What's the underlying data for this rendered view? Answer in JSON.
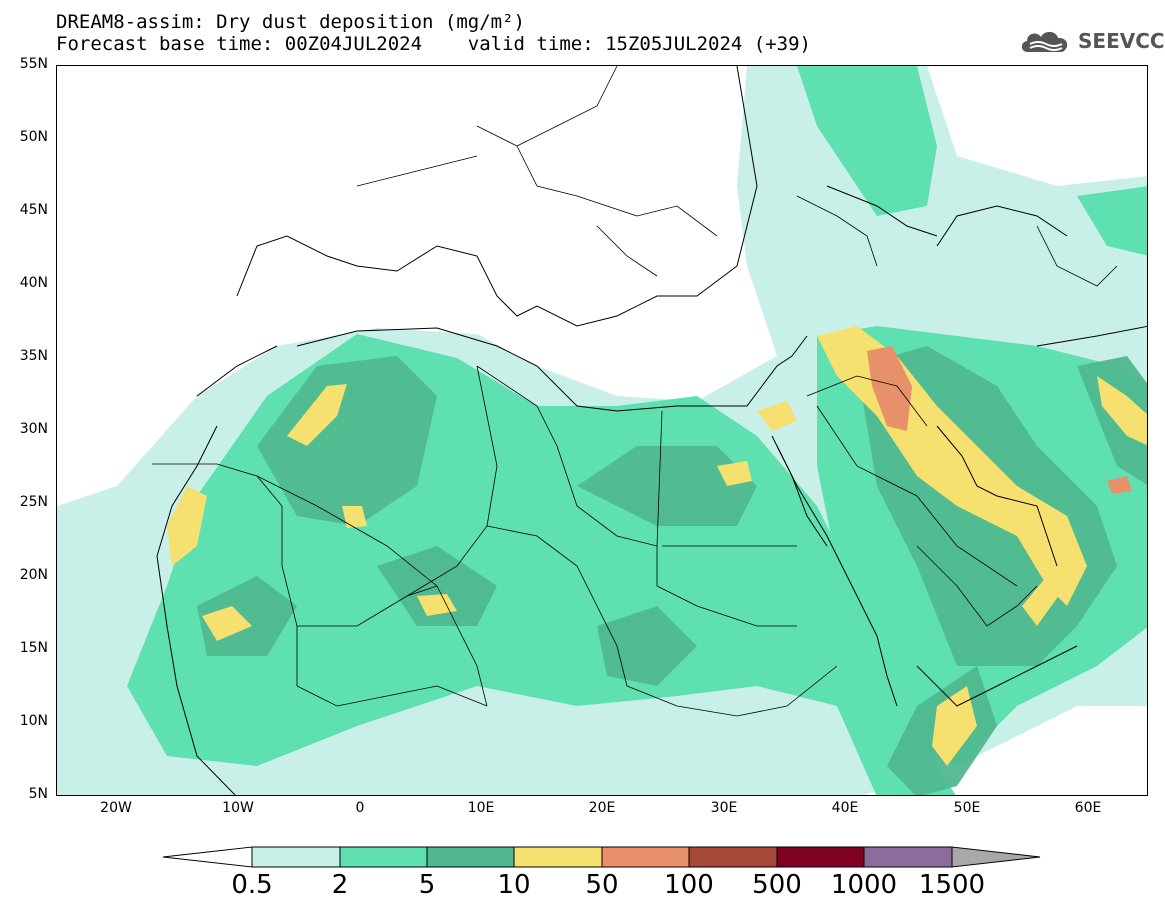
{
  "title": {
    "line1": "DREAM8-assim: Dry dust deposition (mg/m²)",
    "line2": "Forecast base time: 00Z04JUL2024    valid time: 15Z05JUL2024 (+39)"
  },
  "logo": {
    "text": "SEEVCCC",
    "icon": "cloud-logo-icon"
  },
  "map": {
    "lat_labels": [
      "55N",
      "50N",
      "45N",
      "40N",
      "35N",
      "30N",
      "25N",
      "20N",
      "15N",
      "10N",
      "5N"
    ],
    "lon_labels": [
      "20W",
      "10W",
      "0",
      "10E",
      "20E",
      "30E",
      "40E",
      "50E",
      "60E"
    ]
  },
  "colorbar": {
    "labels": [
      "0.5",
      "2",
      "5",
      "10",
      "50",
      "100",
      "500",
      "1000",
      "1500"
    ],
    "colors": [
      "#c8f0e8",
      "#5ee0b0",
      "#50b890",
      "#f5e070",
      "#e8906a",
      "#a84838",
      "#800020",
      "#8c6c9c"
    ],
    "under_color": "#ffffff",
    "over_color": "#a8a8a8"
  }
}
